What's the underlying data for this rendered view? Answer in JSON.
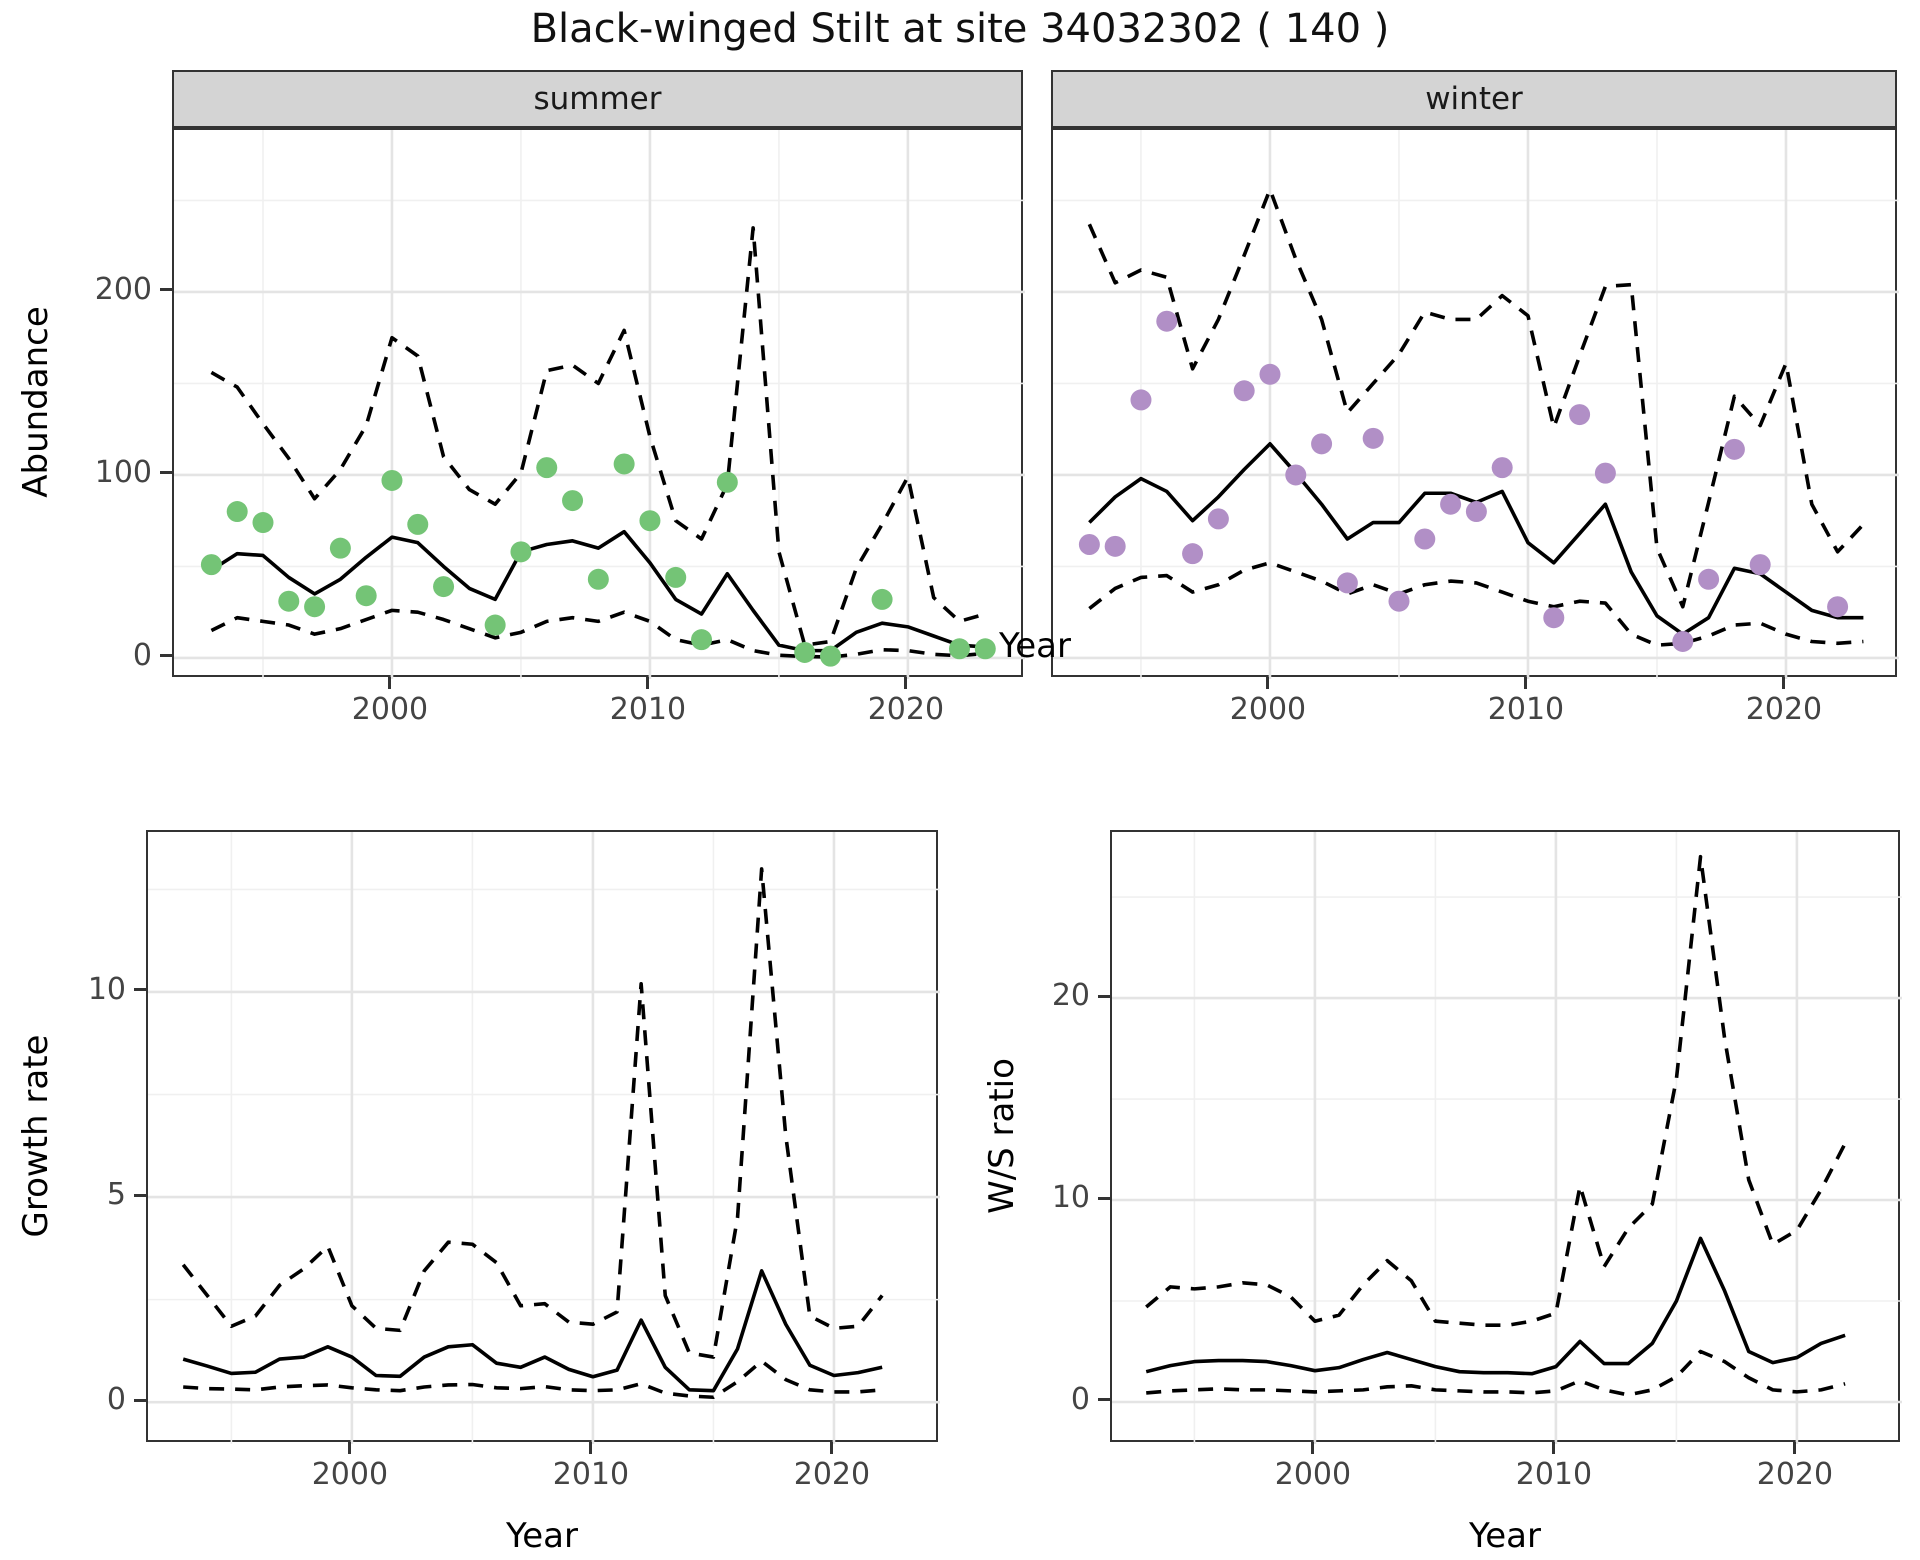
{
  "title": "Black-winged Stilt at site 34032302 ( 140 )",
  "colors": {
    "summer_points": "#74c476",
    "winter_points": "#b18fc6",
    "line": "#000000",
    "strip_bg": "#d4d4d4",
    "grid_major": "#e4e4e4",
    "grid_minor": "#f0f0f0"
  },
  "chart_data": [
    {
      "id": "abundance-summer",
      "type": "line",
      "facet": "summer",
      "xlabel": "Year",
      "ylabel": "Abundance",
      "xlim": [
        1991.55,
        2024.54
      ],
      "ylim": [
        -11.5,
        288.5
      ],
      "x_ticks": [
        2000,
        2010,
        2020
      ],
      "x_minor": [
        1995,
        2005,
        2015
      ],
      "y_ticks": [
        0,
        100,
        200
      ],
      "y_minor": [
        50,
        150,
        250
      ],
      "grid": true,
      "legend": "none",
      "x": [
        1993,
        1994,
        1995,
        1996,
        1997,
        1998,
        1999,
        2000,
        2001,
        2002,
        2003,
        2004,
        2005,
        2006,
        2007,
        2008,
        2009,
        2010,
        2011,
        2012,
        2013,
        2014,
        2015,
        2016,
        2017,
        2018,
        2019,
        2020,
        2021,
        2022,
        2023
      ],
      "series": [
        {
          "name": "upper-ci",
          "kind": "line",
          "dashed": true,
          "values": [
            156,
            148,
            128,
            109,
            87,
            103,
            127,
            175,
            165,
            110,
            92,
            84,
            101,
            157,
            160,
            150,
            179,
            121,
            75,
            65,
            95,
            235,
            58,
            7,
            9,
            49,
            73,
            99,
            33,
            20,
            24
          ]
        },
        {
          "name": "lower-ci",
          "kind": "line",
          "dashed": true,
          "values": [
            15,
            22,
            20,
            18,
            13,
            16,
            21,
            26,
            25,
            21,
            16,
            11,
            14,
            20,
            22,
            20,
            25,
            20,
            10,
            7,
            10,
            4,
            1.5,
            0.8,
            0.5,
            2,
            4.5,
            4,
            2,
            1.2,
            2.5
          ]
        },
        {
          "name": "median",
          "kind": "line",
          "dashed": false,
          "values": [
            48,
            57,
            56,
            44,
            35,
            43,
            55,
            66,
            63,
            50,
            38,
            32,
            58,
            62,
            64,
            60,
            69,
            52,
            32,
            24,
            46,
            26,
            7,
            4,
            4,
            14,
            19,
            17,
            12,
            7,
            6
          ]
        },
        {
          "name": "observed",
          "kind": "points",
          "color": "#74c476",
          "values": [
            51,
            80,
            74,
            31,
            28,
            60,
            34,
            97,
            73,
            39,
            null,
            18,
            58,
            104,
            86,
            43,
            106,
            75,
            44,
            10,
            96,
            null,
            null,
            3,
            1,
            null,
            32,
            null,
            null,
            5,
            5
          ]
        }
      ]
    },
    {
      "id": "abundance-winter",
      "type": "line",
      "facet": "winter",
      "xlabel": "Year",
      "ylabel": "Abundance",
      "xlim": [
        1991.59,
        2024.38
      ],
      "ylim": [
        -11.5,
        288.5
      ],
      "x_ticks": [
        2000,
        2010,
        2020
      ],
      "x_minor": [
        1995,
        2005,
        2015
      ],
      "y_ticks": [
        0,
        100,
        200
      ],
      "y_minor": [
        50,
        150,
        250
      ],
      "grid": true,
      "legend": "none",
      "x": [
        1993,
        1994,
        1995,
        1996,
        1997,
        1998,
        1999,
        2000,
        2001,
        2002,
        2003,
        2004,
        2005,
        2006,
        2007,
        2008,
        2009,
        2010,
        2011,
        2012,
        2013,
        2014,
        2015,
        2016,
        2017,
        2018,
        2019,
        2020,
        2021,
        2022,
        2023
      ],
      "series": [
        {
          "name": "upper-ci",
          "kind": "line",
          "dashed": true,
          "values": [
            237,
            205,
            212,
            208,
            158,
            185,
            220,
            256,
            218,
            185,
            134,
            150,
            166,
            189,
            185,
            185,
            198,
            187,
            126,
            165,
            203,
            204,
            60,
            28,
            85,
            143,
            127,
            161,
            84,
            58,
            73
          ]
        },
        {
          "name": "lower-ci",
          "kind": "line",
          "dashed": true,
          "values": [
            27,
            38,
            44,
            45,
            36,
            40,
            48,
            52,
            47,
            42,
            35,
            40,
            35,
            40,
            42,
            41,
            36,
            31,
            28,
            31,
            30,
            13,
            7,
            8,
            12,
            18,
            19,
            13,
            9,
            8,
            9
          ]
        },
        {
          "name": "median",
          "kind": "line",
          "dashed": false,
          "values": [
            74,
            88,
            98,
            91,
            75,
            88,
            103,
            117,
            101,
            84,
            65,
            74,
            74,
            90,
            90,
            85,
            91,
            63,
            52,
            68,
            84,
            47,
            23,
            13,
            22,
            49,
            46,
            36,
            26,
            22,
            22
          ]
        },
        {
          "name": "observed",
          "kind": "points",
          "color": "#b18fc6",
          "values": [
            62,
            61,
            141,
            184,
            57,
            76,
            146,
            155,
            100,
            117,
            41,
            120,
            31,
            65,
            84,
            80,
            104,
            null,
            22,
            133,
            101,
            null,
            null,
            9,
            43,
            114,
            51,
            null,
            null,
            28,
            null
          ]
        }
      ]
    },
    {
      "id": "growth-rate",
      "type": "line",
      "facet": null,
      "xlabel": "Year",
      "ylabel": "Growth rate",
      "xlim": [
        1991.54,
        2024.4
      ],
      "ylim": [
        -1.02,
        13.9
      ],
      "x_ticks": [
        2000,
        2010,
        2020
      ],
      "x_minor": [
        1995,
        2005,
        2015
      ],
      "y_ticks": [
        0,
        5,
        10
      ],
      "y_minor": [
        2.5,
        7.5,
        12.5
      ],
      "grid": true,
      "legend": "none",
      "x": [
        1993,
        1994,
        1995,
        1996,
        1997,
        1998,
        1999,
        2000,
        2001,
        2002,
        2003,
        2004,
        2005,
        2006,
        2007,
        2008,
        2009,
        2010,
        2011,
        2012,
        2013,
        2014,
        2015,
        2016,
        2017,
        2018,
        2019,
        2020,
        2021,
        2022
      ],
      "series": [
        {
          "name": "upper-ci",
          "kind": "line",
          "dashed": true,
          "values": [
            3.35,
            2.6,
            1.85,
            2.1,
            2.85,
            3.25,
            3.8,
            2.35,
            1.8,
            1.75,
            3.2,
            3.9,
            3.85,
            3.4,
            2.35,
            2.4,
            1.95,
            1.9,
            2.2,
            10.2,
            2.6,
            1.2,
            1.1,
            4.5,
            13.0,
            6.5,
            2.1,
            1.8,
            1.85,
            2.6
          ]
        },
        {
          "name": "lower-ci",
          "kind": "line",
          "dashed": true,
          "values": [
            0.37,
            0.33,
            0.32,
            0.3,
            0.37,
            0.4,
            0.42,
            0.35,
            0.3,
            0.28,
            0.37,
            0.42,
            0.43,
            0.35,
            0.33,
            0.38,
            0.3,
            0.28,
            0.3,
            0.45,
            0.22,
            0.15,
            0.12,
            0.5,
            1.0,
            0.55,
            0.3,
            0.25,
            0.25,
            0.3
          ]
        },
        {
          "name": "median",
          "kind": "line",
          "dashed": false,
          "values": [
            1.05,
            0.88,
            0.7,
            0.73,
            1.05,
            1.1,
            1.35,
            1.1,
            0.65,
            0.63,
            1.1,
            1.35,
            1.4,
            0.95,
            0.85,
            1.1,
            0.8,
            0.62,
            0.78,
            2.0,
            0.85,
            0.3,
            0.28,
            1.3,
            3.2,
            1.9,
            0.9,
            0.65,
            0.72,
            0.85
          ]
        }
      ]
    },
    {
      "id": "ws-ratio",
      "type": "line",
      "facet": null,
      "xlabel": "Year",
      "ylabel": "W/S ratio",
      "xlim": [
        1991.58,
        2024.36
      ],
      "ylim": [
        -2.08,
        28.22
      ],
      "x_ticks": [
        2000,
        2010,
        2020
      ],
      "x_minor": [
        1995,
        2005,
        2015
      ],
      "y_ticks": [
        0,
        10,
        20
      ],
      "y_minor": [
        5,
        15,
        25
      ],
      "grid": true,
      "legend": "none",
      "x": [
        1993,
        1994,
        1995,
        1996,
        1997,
        1998,
        1999,
        2000,
        2001,
        2002,
        2003,
        2004,
        2005,
        2006,
        2007,
        2008,
        2009,
        2010,
        2011,
        2012,
        2013,
        2014,
        2015,
        2016,
        2017,
        2018,
        2019,
        2020,
        2021,
        2022
      ],
      "series": [
        {
          "name": "upper-ci",
          "kind": "line",
          "dashed": true,
          "values": [
            4.7,
            5.7,
            5.6,
            5.7,
            5.9,
            5.8,
            5.2,
            4.0,
            4.3,
            5.8,
            7.0,
            6.0,
            4.0,
            3.9,
            3.8,
            3.8,
            4.0,
            4.4,
            10.7,
            6.7,
            8.6,
            9.8,
            16.0,
            27.0,
            18.0,
            11.0,
            7.8,
            8.5,
            10.5,
            12.8
          ]
        },
        {
          "name": "lower-ci",
          "kind": "line",
          "dashed": true,
          "values": [
            0.45,
            0.55,
            0.6,
            0.65,
            0.6,
            0.6,
            0.55,
            0.5,
            0.55,
            0.6,
            0.75,
            0.8,
            0.6,
            0.55,
            0.5,
            0.5,
            0.45,
            0.55,
            1.05,
            0.6,
            0.35,
            0.6,
            1.25,
            2.5,
            2.0,
            1.2,
            0.6,
            0.5,
            0.6,
            0.9
          ]
        },
        {
          "name": "median",
          "kind": "line",
          "dashed": false,
          "values": [
            1.5,
            1.8,
            2.0,
            2.05,
            2.05,
            2.0,
            1.8,
            1.55,
            1.7,
            2.1,
            2.45,
            2.1,
            1.75,
            1.5,
            1.45,
            1.45,
            1.4,
            1.75,
            3.0,
            1.9,
            1.9,
            2.9,
            5.0,
            8.1,
            5.5,
            2.5,
            1.95,
            2.2,
            2.9,
            3.3
          ]
        }
      ]
    }
  ]
}
